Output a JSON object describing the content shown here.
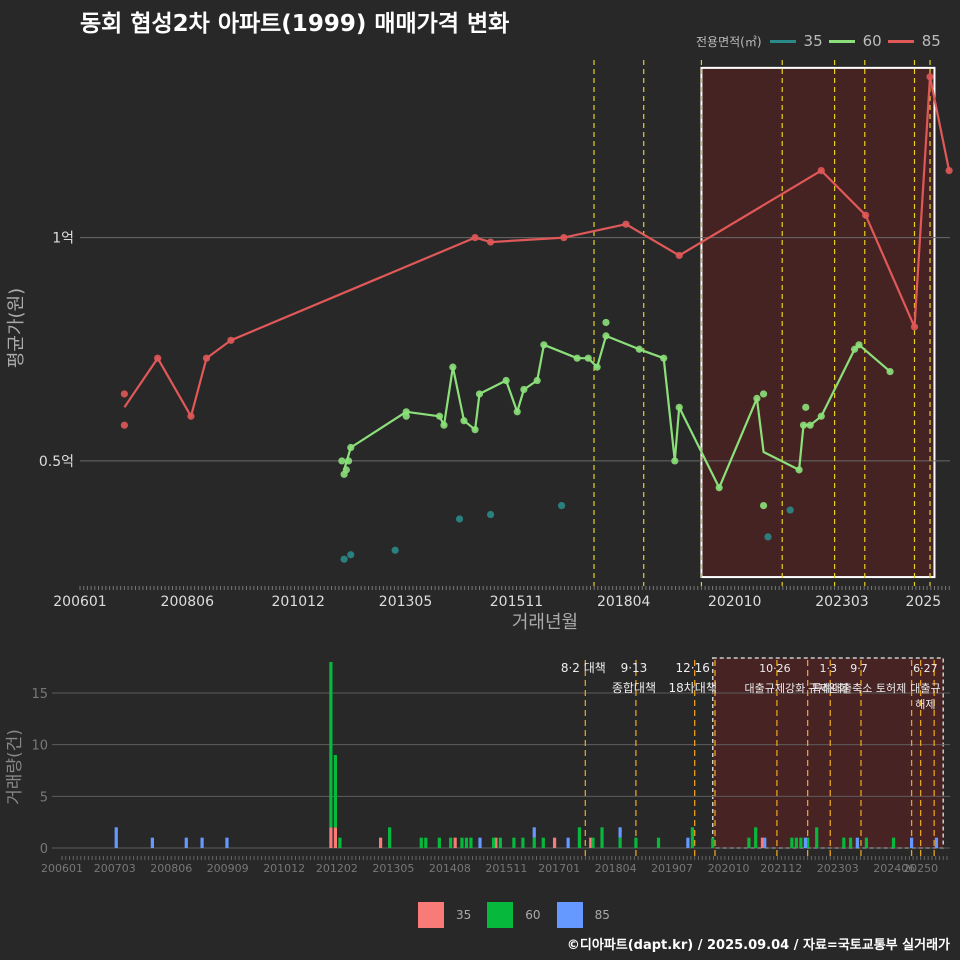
{
  "title": "동회 협성2차 아파트(1999) 매매가격 변화",
  "legend": {
    "title": "전용면적(㎡)",
    "items": [
      {
        "label": "35",
        "color": "#2a8a88"
      },
      {
        "label": "60",
        "color": "#8be07a"
      },
      {
        "label": "85",
        "color": "#e05858"
      }
    ]
  },
  "chart_data": [
    {
      "type": "line",
      "title": "동회 협성2차 아파트(1999) 매매가격 변화",
      "xlabel": "거래년월",
      "ylabel": "평균가(원)",
      "x_ticks": [
        "200601",
        "200806",
        "201012",
        "201305",
        "201511",
        "201804",
        "202010",
        "202303",
        "2025"
      ],
      "y_ticks": [
        {
          "value": 0.5,
          "label": "0.5억"
        },
        {
          "value": 1.0,
          "label": "1억"
        }
      ],
      "ylim": [
        0.22,
        1.42
      ],
      "policy_lines": [
        2017.58,
        2018.7,
        2020.0,
        2021.82,
        2023.0,
        2023.68,
        2024.8,
        2025.15
      ],
      "highlight_range": [
        2020.0,
        2025.25
      ],
      "series": [
        {
          "name": "85",
          "color": "#e05858",
          "line": [
            [
              2007.0,
              0.62
            ],
            [
              2007.75,
              0.73
            ],
            [
              2008.5,
              0.6
            ],
            [
              2008.85,
              0.73
            ],
            [
              2009.4,
              0.77
            ],
            [
              2014.9,
              1.0
            ],
            [
              2015.25,
              0.99
            ],
            [
              2016.9,
              1.0
            ],
            [
              2018.3,
              1.03
            ],
            [
              2019.5,
              0.96
            ],
            [
              2022.7,
              1.15
            ],
            [
              2023.7,
              1.05
            ],
            [
              2024.8,
              0.8
            ],
            [
              2025.15,
              1.36
            ],
            [
              2025.58,
              1.15
            ]
          ],
          "points": [
            [
              2007.0,
              0.65
            ],
            [
              2007.0,
              0.58
            ],
            [
              2007.75,
              0.73
            ],
            [
              2008.5,
              0.6
            ],
            [
              2008.85,
              0.73
            ],
            [
              2009.4,
              0.77
            ],
            [
              2014.9,
              1.0
            ],
            [
              2015.25,
              0.99
            ],
            [
              2016.9,
              1.0
            ],
            [
              2018.3,
              1.03
            ],
            [
              2019.5,
              0.96
            ],
            [
              2022.7,
              1.15
            ],
            [
              2023.7,
              1.05
            ],
            [
              2024.8,
              0.8
            ],
            [
              2025.15,
              1.36
            ],
            [
              2025.58,
              1.15
            ]
          ]
        },
        {
          "name": "60",
          "color": "#8be07a",
          "line": [
            [
              2011.95,
              0.48
            ],
            [
              2012.1,
              0.53
            ],
            [
              2013.35,
              0.61
            ],
            [
              2014.1,
              0.6
            ],
            [
              2014.2,
              0.58
            ],
            [
              2014.4,
              0.71
            ],
            [
              2014.65,
              0.59
            ],
            [
              2014.9,
              0.57
            ],
            [
              2015.0,
              0.65
            ],
            [
              2015.6,
              0.68
            ],
            [
              2015.85,
              0.61
            ],
            [
              2016.0,
              0.66
            ],
            [
              2016.3,
              0.68
            ],
            [
              2016.45,
              0.76
            ],
            [
              2017.2,
              0.73
            ],
            [
              2017.45,
              0.73
            ],
            [
              2017.65,
              0.71
            ],
            [
              2017.85,
              0.78
            ],
            [
              2018.6,
              0.75
            ],
            [
              2019.15,
              0.73
            ],
            [
              2019.4,
              0.5
            ],
            [
              2019.5,
              0.62
            ],
            [
              2020.4,
              0.44
            ],
            [
              2021.25,
              0.64
            ],
            [
              2021.4,
              0.52
            ],
            [
              2022.2,
              0.48
            ],
            [
              2022.3,
              0.58
            ],
            [
              2022.45,
              0.58
            ],
            [
              2022.7,
              0.6
            ],
            [
              2023.45,
              0.75
            ],
            [
              2023.55,
              0.76
            ],
            [
              2024.25,
              0.7
            ]
          ],
          "points": [
            [
              2011.9,
              0.5
            ],
            [
              2011.95,
              0.47
            ],
            [
              2012.0,
              0.48
            ],
            [
              2012.05,
              0.5
            ],
            [
              2012.1,
              0.53
            ],
            [
              2013.35,
              0.61
            ],
            [
              2013.35,
              0.6
            ],
            [
              2014.1,
              0.6
            ],
            [
              2014.2,
              0.58
            ],
            [
              2014.4,
              0.71
            ],
            [
              2014.65,
              0.59
            ],
            [
              2014.9,
              0.57
            ],
            [
              2015.0,
              0.65
            ],
            [
              2015.6,
              0.68
            ],
            [
              2015.85,
              0.61
            ],
            [
              2016.0,
              0.66
            ],
            [
              2016.3,
              0.68
            ],
            [
              2016.45,
              0.76
            ],
            [
              2017.2,
              0.73
            ],
            [
              2017.45,
              0.73
            ],
            [
              2017.65,
              0.71
            ],
            [
              2017.85,
              0.78
            ],
            [
              2017.85,
              0.81
            ],
            [
              2018.6,
              0.75
            ],
            [
              2019.15,
              0.73
            ],
            [
              2019.4,
              0.5
            ],
            [
              2019.5,
              0.62
            ],
            [
              2020.4,
              0.44
            ],
            [
              2021.25,
              0.64
            ],
            [
              2021.4,
              0.65
            ],
            [
              2021.4,
              0.4
            ],
            [
              2022.2,
              0.48
            ],
            [
              2022.3,
              0.58
            ],
            [
              2022.35,
              0.62
            ],
            [
              2022.45,
              0.58
            ],
            [
              2022.7,
              0.6
            ],
            [
              2023.45,
              0.75
            ],
            [
              2023.55,
              0.76
            ],
            [
              2024.25,
              0.7
            ]
          ]
        },
        {
          "name": "35",
          "color": "#2a8a88",
          "line": [],
          "points": [
            [
              2011.95,
              0.28
            ],
            [
              2012.1,
              0.29
            ],
            [
              2013.1,
              0.3
            ],
            [
              2014.55,
              0.37
            ],
            [
              2015.25,
              0.38
            ],
            [
              2016.85,
              0.4
            ],
            [
              2021.5,
              0.33
            ],
            [
              2022.0,
              0.39
            ]
          ]
        }
      ]
    },
    {
      "type": "bar",
      "stacked": true,
      "xlabel": "",
      "ylabel": "거래량(건)",
      "x_ticks": [
        "200601",
        "200703",
        "200806",
        "200909",
        "201012",
        "201202",
        "201305",
        "201408",
        "201511",
        "201701",
        "201804",
        "201907",
        "202010",
        "202112",
        "202303",
        "202406",
        "20250"
      ],
      "y_ticks": [
        0,
        5,
        10,
        15
      ],
      "ylim": [
        0,
        18
      ],
      "highlight_range": [
        2020.4,
        2025.5
      ],
      "policy_lines": [
        2017.58,
        2018.7,
        2020.0,
        2020.45,
        2021.82,
        2022.5,
        2023.0,
        2023.68,
        2024.8,
        2025.0,
        2025.3
      ],
      "annotations": [
        {
          "date": "8·2 대책",
          "note": "",
          "x": 2017.58
        },
        {
          "date": "9·13",
          "note": "종합대책",
          "x": 2018.7
        },
        {
          "date": "12·16",
          "note": "18차대책",
          "x": 2020.0
        },
        {
          "date": "10·26",
          "note": "대출규제강화",
          "x": 2021.82
        },
        {
          "date": "1·3",
          "note": "규제완화",
          "x": 2023.0
        },
        {
          "date": "9·7",
          "note": "특례대출축소 토허제",
          "x": 2023.68
        },
        {
          "date": "6·27",
          "note": "대출규",
          "x": 2025.15
        },
        {
          "date": "",
          "note": "해제",
          "x": 2025.15
        }
      ],
      "series": [
        {
          "name": "35",
          "color": "#f87b78",
          "bars": [
            [
              2011.95,
              2
            ],
            [
              2012.05,
              2
            ],
            [
              2013.05,
              1
            ],
            [
              2014.7,
              1
            ],
            [
              2015.6,
              1
            ],
            [
              2016.9,
              1
            ],
            [
              2017.7,
              1
            ],
            [
              2021.5,
              1
            ]
          ]
        },
        {
          "name": "60",
          "color": "#06b83c",
          "bars": [
            [
              2011.95,
              16
            ],
            [
              2012.05,
              7
            ],
            [
              2012.15,
              1
            ],
            [
              2013.25,
              2
            ],
            [
              2013.95,
              1
            ],
            [
              2014.05,
              1
            ],
            [
              2014.35,
              1
            ],
            [
              2014.6,
              1
            ],
            [
              2014.85,
              1
            ],
            [
              2014.95,
              1
            ],
            [
              2015.05,
              1
            ],
            [
              2015.55,
              1
            ],
            [
              2015.7,
              1
            ],
            [
              2016.0,
              1
            ],
            [
              2016.2,
              1
            ],
            [
              2016.45,
              1
            ],
            [
              2016.65,
              1
            ],
            [
              2017.45,
              2
            ],
            [
              2017.75,
              1
            ],
            [
              2017.95,
              2
            ],
            [
              2018.35,
              1
            ],
            [
              2018.7,
              1
            ],
            [
              2019.2,
              1
            ],
            [
              2019.95,
              2
            ],
            [
              2020.4,
              1
            ],
            [
              2021.2,
              1
            ],
            [
              2021.35,
              2
            ],
            [
              2022.15,
              1
            ],
            [
              2022.25,
              1
            ],
            [
              2022.35,
              1
            ],
            [
              2022.5,
              1
            ],
            [
              2022.7,
              2
            ],
            [
              2023.3,
              1
            ],
            [
              2023.45,
              1
            ],
            [
              2023.8,
              1
            ],
            [
              2024.4,
              1
            ]
          ]
        },
        {
          "name": "85",
          "color": "#6699ff",
          "bars": [
            [
              2007.2,
              2
            ],
            [
              2008.0,
              1
            ],
            [
              2008.75,
              1
            ],
            [
              2009.1,
              1
            ],
            [
              2009.65,
              1
            ],
            [
              2015.25,
              1
            ],
            [
              2016.45,
              1
            ],
            [
              2017.2,
              1
            ],
            [
              2018.35,
              1
            ],
            [
              2019.85,
              1
            ],
            [
              2021.55,
              1
            ],
            [
              2022.45,
              1
            ],
            [
              2023.6,
              1
            ],
            [
              2024.8,
              1
            ],
            [
              2025.35,
              1
            ]
          ]
        }
      ]
    }
  ],
  "legend_bottom": [
    {
      "label": "35",
      "color": "#f87b78"
    },
    {
      "label": "60",
      "color": "#06b83c"
    },
    {
      "label": "85",
      "color": "#6699ff"
    }
  ],
  "footer": "©디아파트(dapt.kr) / 2025.09.04 / 자료=국토교통부 실거래가"
}
